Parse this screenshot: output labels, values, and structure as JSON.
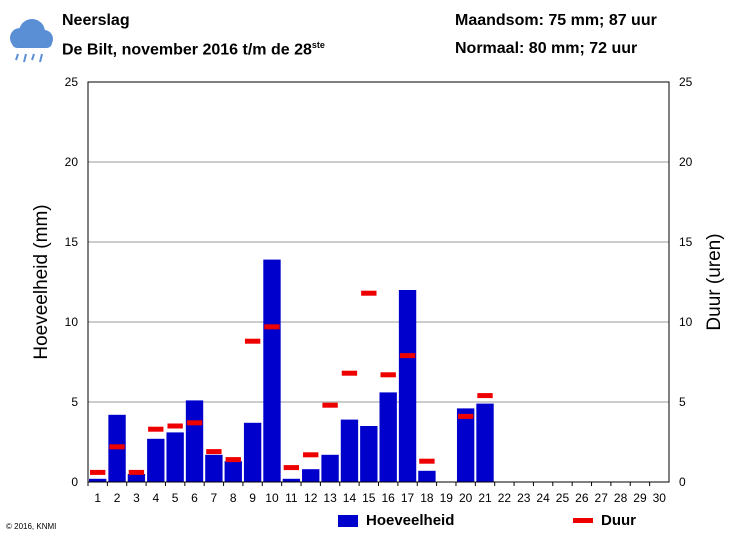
{
  "header": {
    "title": "Neerslag",
    "subtitle": "De Bilt, november 2016 t/m de 28",
    "subtitle_sup": "ste",
    "summary_month": "Maandsom: 75 mm; 87 uur",
    "summary_normal": "Normaal: 80 mm; 72 uur"
  },
  "icon": "rain-cloud-icon",
  "credit": "© 2016, KNMI",
  "colors": {
    "bar": "#0000cc",
    "duration": "#ee0000",
    "grid": "#999999"
  },
  "chart_data": {
    "type": "bar",
    "xlabel": "",
    "ylabel": "Hoeveelheid (mm)",
    "y2label": "Duur (uren)",
    "ylim": [
      0,
      25
    ],
    "y2lim": [
      0,
      25
    ],
    "yticks": [
      0,
      5,
      10,
      15,
      20,
      25
    ],
    "grid": true,
    "legend_position": "bottom",
    "categories": [
      "1",
      "2",
      "3",
      "4",
      "5",
      "6",
      "7",
      "8",
      "9",
      "10",
      "11",
      "12",
      "13",
      "14",
      "15",
      "16",
      "17",
      "18",
      "19",
      "20",
      "21",
      "22",
      "23",
      "24",
      "25",
      "26",
      "27",
      "28",
      "29",
      "30"
    ],
    "series": [
      {
        "name": "Hoeveelheid",
        "kind": "bar",
        "values": [
          0.2,
          4.2,
          0.5,
          2.7,
          3.1,
          5.1,
          1.7,
          1.3,
          3.7,
          13.9,
          0.2,
          0.8,
          1.7,
          3.9,
          3.5,
          5.6,
          12.0,
          0.7,
          0,
          4.6,
          4.9,
          null,
          null,
          null,
          null,
          null,
          null,
          null,
          null,
          null
        ]
      },
      {
        "name": "Duur",
        "kind": "marker",
        "values": [
          0.6,
          2.2,
          0.6,
          3.3,
          3.5,
          3.7,
          1.9,
          1.4,
          8.8,
          9.7,
          0.9,
          1.7,
          4.8,
          6.8,
          11.8,
          6.7,
          7.9,
          1.3,
          0,
          4.1,
          5.4,
          null,
          null,
          null,
          null,
          null,
          null,
          null,
          null,
          null
        ]
      }
    ]
  }
}
